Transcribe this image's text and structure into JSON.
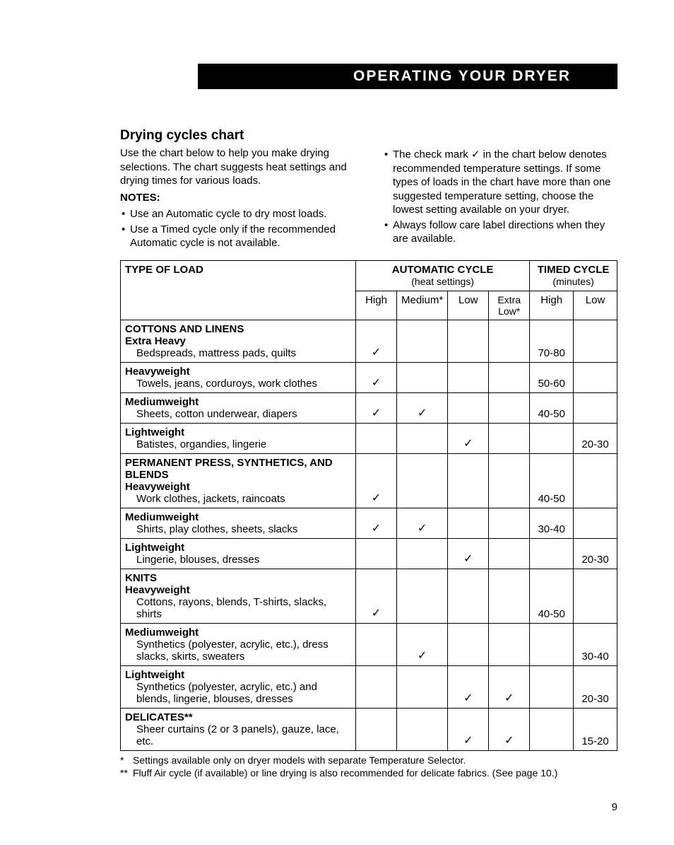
{
  "banner": "OPERATING YOUR DRYER",
  "title": "Drying cycles chart",
  "intro_left_p1": "Use the chart below to help you make drying selections. The chart suggests heat settings and drying times for various loads.",
  "notes_label": "NOTES:",
  "notes_left": [
    "Use an Automatic cycle to dry most loads.",
    "Use a Timed cycle only if the recommended Automatic cycle is not available."
  ],
  "notes_right": [
    "The check mark ✓ in the chart below denotes recommended temperature settings. If some types of loads in the chart have more than one suggested temperature setting, choose the lowest setting available on your dryer.",
    "Always follow care label directions when they are available."
  ],
  "headers": {
    "type": "TYPE OF LOAD",
    "auto": "AUTOMATIC CYCLE",
    "auto_sub": "(heat settings)",
    "timed": "TIMED CYCLE",
    "timed_sub": "(minutes)",
    "high": "High",
    "medium": "Medium*",
    "low": "Low",
    "extra_low": "Extra Low*",
    "t_high": "High",
    "t_low": "Low"
  },
  "sections": [
    {
      "title": "COTTONS AND LINENS",
      "rows": [
        {
          "sub": "Extra Heavy",
          "desc": "Bedspreads, mattress pads, quilts",
          "high": "✓",
          "med": "",
          "low": "",
          "xlow": "",
          "thigh": "70-80",
          "tlow": ""
        },
        {
          "sub": "Heavyweight",
          "desc": "Towels, jeans, corduroys, work clothes",
          "high": "✓",
          "med": "",
          "low": "",
          "xlow": "",
          "thigh": "50-60",
          "tlow": ""
        },
        {
          "sub": "Mediumweight",
          "desc": "Sheets, cotton underwear, diapers",
          "high": "✓",
          "med": "✓",
          "low": "",
          "xlow": "",
          "thigh": "40-50",
          "tlow": ""
        },
        {
          "sub": "Lightweight",
          "desc": "Batistes, organdies, lingerie",
          "high": "",
          "med": "",
          "low": "✓",
          "xlow": "",
          "thigh": "",
          "tlow": "20-30"
        }
      ]
    },
    {
      "title": "PERMANENT PRESS, SYNTHETICS, AND BLENDS",
      "rows": [
        {
          "sub": "Heavyweight",
          "desc": "Work clothes, jackets, raincoats",
          "high": "✓",
          "med": "",
          "low": "",
          "xlow": "",
          "thigh": "40-50",
          "tlow": ""
        },
        {
          "sub": "Mediumweight",
          "desc": "Shirts, play clothes, sheets, slacks",
          "high": "✓",
          "med": "✓",
          "low": "",
          "xlow": "",
          "thigh": "30-40",
          "tlow": ""
        },
        {
          "sub": "Lightweight",
          "desc": "Lingerie, blouses, dresses",
          "high": "",
          "med": "",
          "low": "✓",
          "xlow": "",
          "thigh": "",
          "tlow": "20-30"
        }
      ]
    },
    {
      "title": "KNITS",
      "rows": [
        {
          "sub": "Heavyweight",
          "desc": "Cottons, rayons, blends, T-shirts, slacks, shirts",
          "high": "✓",
          "med": "",
          "low": "",
          "xlow": "",
          "thigh": "40-50",
          "tlow": ""
        },
        {
          "sub": "Mediumweight",
          "desc": "Synthetics (polyester, acrylic, etc.), dress slacks, skirts, sweaters",
          "high": "",
          "med": "✓",
          "low": "",
          "xlow": "",
          "thigh": "",
          "tlow": "30-40"
        },
        {
          "sub": "Lightweight",
          "desc": "Synthetics (polyester, acrylic, etc.) and blends, lingerie, blouses, dresses",
          "high": "",
          "med": "",
          "low": "✓",
          "xlow": "✓",
          "thigh": "",
          "tlow": "20-30"
        }
      ]
    },
    {
      "title": "DELICATES**",
      "rows": [
        {
          "sub": "",
          "desc": "Sheer curtains (2 or 3 panels), gauze, lace, etc.",
          "high": "",
          "med": "",
          "low": "✓",
          "xlow": "✓",
          "thigh": "",
          "tlow": "15-20"
        }
      ]
    }
  ],
  "footnote1": "Settings available only on dryer models with separate Temperature Selector.",
  "footnote2": "Fluff Air cycle (if available) or line drying is also recommended for delicate fabrics. (See page 10.)",
  "page_number": "9"
}
